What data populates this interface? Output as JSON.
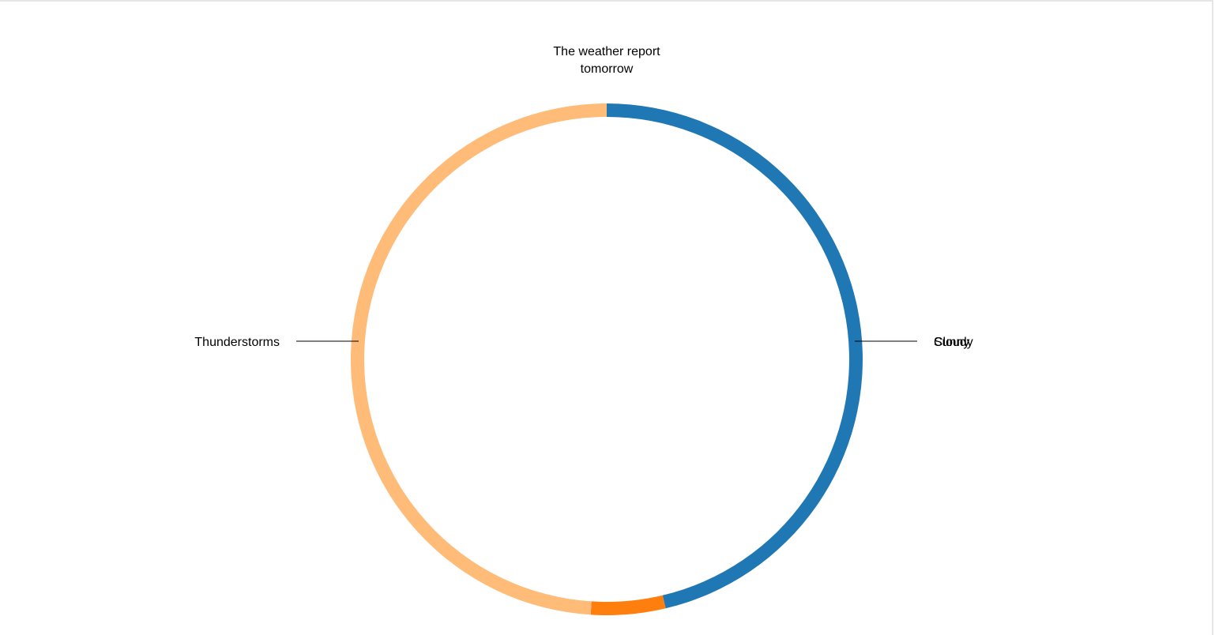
{
  "chart_data": {
    "type": "pie",
    "variant": "donut",
    "title_lines": [
      "The weather report",
      "tomorrow"
    ],
    "slices": [
      {
        "label": "Cloudy",
        "value": 46.3,
        "color": "#1f77b4"
      },
      {
        "label": "Sunny",
        "value": 4.7,
        "color": "#ff7f0e"
      },
      {
        "label": "Thunderstorms",
        "value": 49.0,
        "color": "#ffbb78"
      }
    ],
    "start_angle": "top",
    "direction": "clockwise",
    "legend": "none",
    "labels": "outside-with-leader-lines"
  }
}
